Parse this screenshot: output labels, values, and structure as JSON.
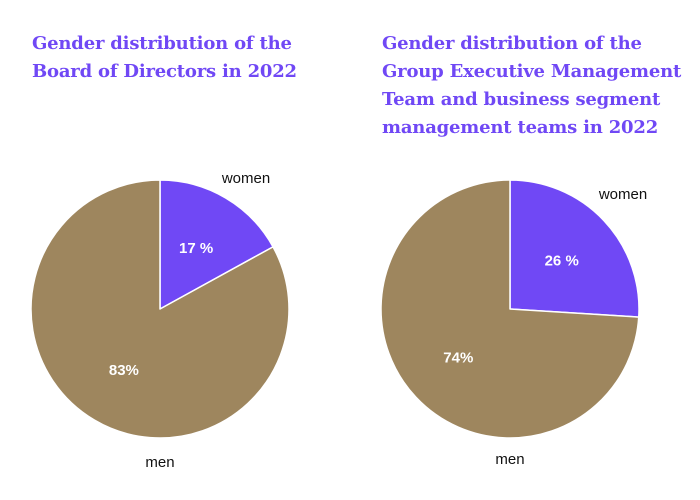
{
  "colors": {
    "women": "#7048f5",
    "men": "#9e865e",
    "title": "#7048f5",
    "slice_label": "#ffffff",
    "outside_label": "#111111"
  },
  "chart_data": [
    {
      "type": "pie",
      "title": "Gender distribution of the\nBoard of Directors in 2022",
      "categories": [
        "women",
        "men"
      ],
      "values": [
        17,
        83
      ],
      "data_labels": [
        "17 %",
        "83%"
      ],
      "start": "12 o'clock",
      "direction": "clockwise"
    },
    {
      "type": "pie",
      "title": "Gender distribution of the\nGroup Executive Management\nTeam and business segment\nmanagement teams in 2022",
      "categories": [
        "women",
        "men"
      ],
      "values": [
        26,
        74
      ],
      "data_labels": [
        "26 %",
        "74%"
      ],
      "start": "12 o'clock",
      "direction": "clockwise"
    }
  ]
}
